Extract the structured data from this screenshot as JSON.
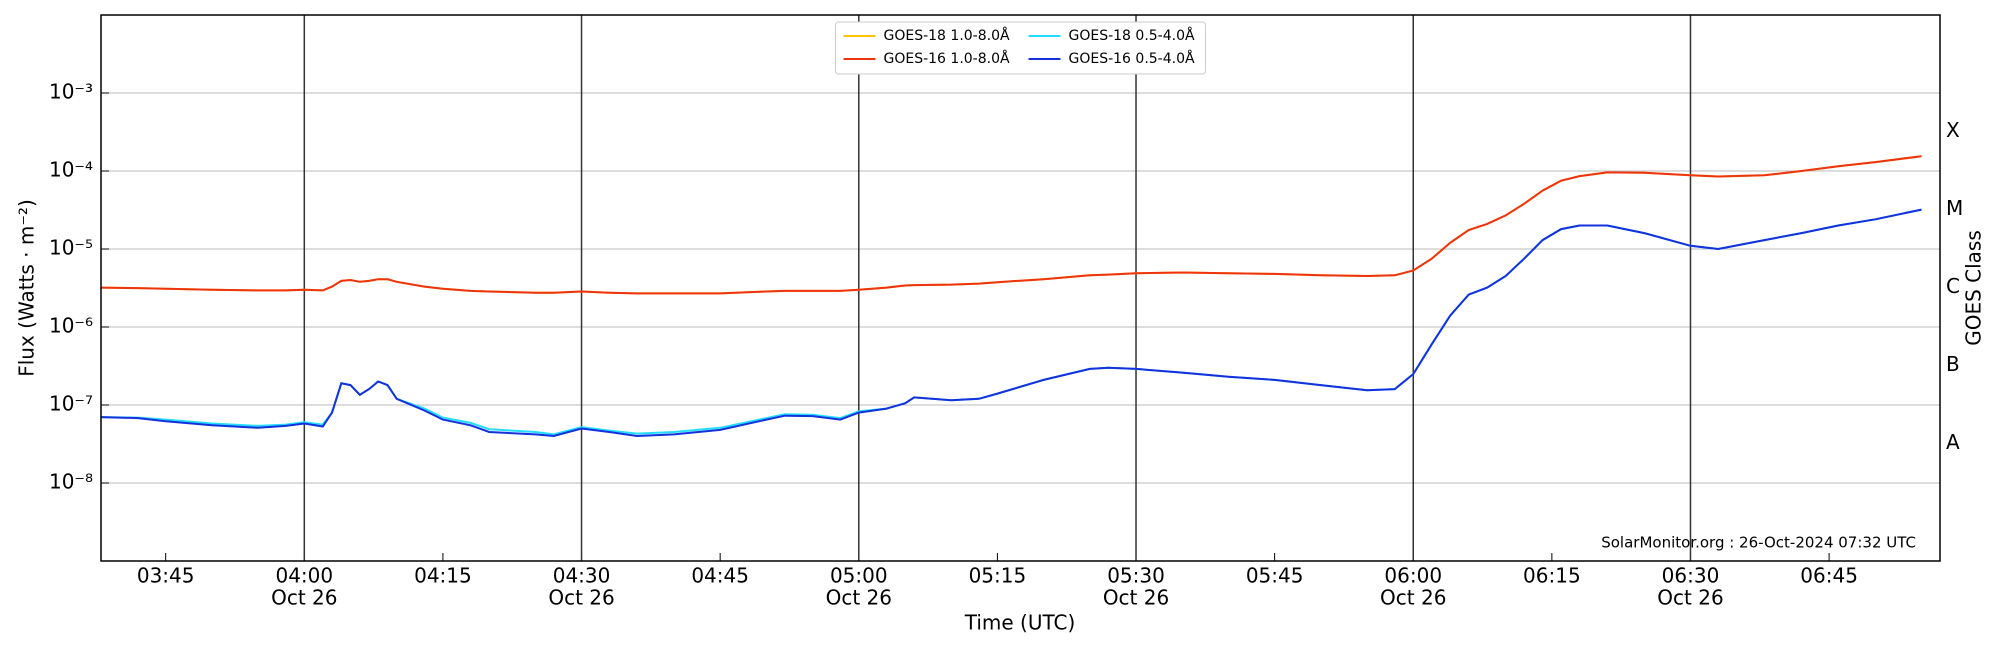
{
  "chart_data": {
    "type": "line",
    "ylabel": "Flux (Watts · m⁻²)",
    "xlabel": "Time (UTC)",
    "y2label": "GOES Class",
    "annotation": "SolarMonitor.org : 26-Oct-2024 07:32 UTC",
    "log_y": true,
    "grid": true,
    "date_lines": true,
    "legend": "upper center",
    "xlim": [
      "03:38",
      "06:57"
    ],
    "xticks": [
      "03:45",
      {
        "value": "04:00",
        "label": "04:00",
        "date": "Oct 26"
      },
      "04:15",
      {
        "value": "04:30",
        "label": "04:30",
        "date": "Oct 26"
      },
      "04:45",
      {
        "value": "05:00",
        "label": "05:00",
        "date": "Oct 26"
      },
      "05:15",
      {
        "value": "05:30",
        "label": "05:30",
        "date": "Oct 26"
      },
      "05:45",
      {
        "value": "06:00",
        "label": "06:00",
        "date": "Oct 26"
      },
      "06:15",
      {
        "value": "06:30",
        "label": "06:30",
        "date": "Oct 26"
      },
      "06:45"
    ],
    "ylim": [
      1e-09,
      0.01
    ],
    "yticks": [
      {
        "value": 1e-08,
        "label": "10⁻⁸"
      },
      {
        "value": 1e-07,
        "label": "10⁻⁷"
      },
      {
        "value": 1e-06,
        "label": "10⁻⁶"
      },
      {
        "value": 1e-05,
        "label": "10⁻⁵"
      },
      {
        "value": 0.0001,
        "label": "10⁻⁴"
      },
      {
        "value": 0.001,
        "label": "10⁻³"
      }
    ],
    "y2lim": [
      1e-09,
      0.01
    ],
    "y2ticks": [
      {
        "value": 3.2e-08,
        "label": "A"
      },
      {
        "value": 3.2e-07,
        "label": "B"
      },
      {
        "value": 3.2e-06,
        "label": "C"
      },
      {
        "value": 3.2e-05,
        "label": "M"
      },
      {
        "value": 0.00032,
        "label": "X"
      }
    ],
    "x": [
      "03:38",
      "03:42",
      "03:45",
      "03:50",
      "03:55",
      "03:58",
      "04:00",
      "04:02",
      "04:03",
      "04:04",
      "04:05",
      "04:06",
      "04:07",
      "04:08",
      "04:09",
      "04:10",
      "04:13",
      "04:15",
      "04:18",
      "04:20",
      "04:25",
      "04:27",
      "04:30",
      "04:33",
      "04:36",
      "04:40",
      "04:45",
      "04:50",
      "04:52",
      "04:55",
      "04:58",
      "05:00",
      "05:03",
      "05:05",
      "05:06",
      "05:10",
      "05:13",
      "05:15",
      "05:20",
      "05:25",
      "05:27",
      "05:30",
      "05:35",
      "05:40",
      "05:45",
      "05:50",
      "05:55",
      "05:58",
      "06:00",
      "06:02",
      "06:04",
      "06:06",
      "06:08",
      "06:10",
      "06:12",
      "06:14",
      "06:16",
      "06:18",
      "06:21",
      "06:25",
      "06:30",
      "06:33",
      "06:38",
      "06:42",
      "06:46",
      "06:50",
      "06:55"
    ],
    "series": [
      {
        "name": "GOES-18 1.0-8.0Å",
        "color": "#ffc400",
        "values": [
          3.2e-06,
          3.15e-06,
          3.1e-06,
          3e-06,
          2.95e-06,
          2.95e-06,
          3e-06,
          2.95e-06,
          3.3e-06,
          3.9e-06,
          4e-06,
          3.8e-06,
          3.9e-06,
          4.1e-06,
          4.1e-06,
          3.8e-06,
          3.3e-06,
          3.1e-06,
          2.9e-06,
          2.85e-06,
          2.75e-06,
          2.75e-06,
          2.85e-06,
          2.75e-06,
          2.7e-06,
          2.7e-06,
          2.7e-06,
          2.85e-06,
          2.9e-06,
          2.9e-06,
          2.9e-06,
          3e-06,
          3.2e-06,
          3.4e-06,
          3.45e-06,
          3.5e-06,
          3.6e-06,
          3.75e-06,
          4.1e-06,
          4.6e-06,
          4.7e-06,
          4.9e-06,
          5e-06,
          4.9e-06,
          4.8e-06,
          4.6e-06,
          4.5e-06,
          4.6e-06,
          5.3e-06,
          7.5e-06,
          1.2e-05,
          1.75e-05,
          2.1e-05,
          2.7e-05,
          3.8e-05,
          5.6e-05,
          7.5e-05,
          8.6e-05,
          9.6e-05,
          9.5e-05,
          8.8e-05,
          8.5e-05,
          8.8e-05,
          0.0001,
          0.000115,
          0.00013,
          0.000155
        ]
      },
      {
        "name": "GOES-16 1.0-8.0Å",
        "color": "#ee3311",
        "values": [
          3.2e-06,
          3.15e-06,
          3.1e-06,
          3e-06,
          2.95e-06,
          2.95e-06,
          3e-06,
          2.95e-06,
          3.3e-06,
          3.9e-06,
          4e-06,
          3.8e-06,
          3.9e-06,
          4.1e-06,
          4.1e-06,
          3.8e-06,
          3.3e-06,
          3.1e-06,
          2.9e-06,
          2.85e-06,
          2.75e-06,
          2.75e-06,
          2.85e-06,
          2.75e-06,
          2.7e-06,
          2.7e-06,
          2.7e-06,
          2.85e-06,
          2.9e-06,
          2.9e-06,
          2.9e-06,
          3e-06,
          3.2e-06,
          3.4e-06,
          3.45e-06,
          3.5e-06,
          3.6e-06,
          3.75e-06,
          4.1e-06,
          4.6e-06,
          4.7e-06,
          4.9e-06,
          5e-06,
          4.9e-06,
          4.8e-06,
          4.6e-06,
          4.5e-06,
          4.6e-06,
          5.3e-06,
          7.5e-06,
          1.2e-05,
          1.75e-05,
          2.1e-05,
          2.7e-05,
          3.8e-05,
          5.6e-05,
          7.5e-05,
          8.6e-05,
          9.6e-05,
          9.5e-05,
          8.8e-05,
          8.5e-05,
          8.8e-05,
          0.0001,
          0.000115,
          0.00013,
          0.000155
        ]
      },
      {
        "name": "GOES-18 0.5-4.0Å",
        "color": "#22ddff",
        "values": [
          7e-08,
          6.9e-08,
          6.5e-08,
          5.8e-08,
          5.4e-08,
          5.6e-08,
          6e-08,
          5.6e-08,
          8e-08,
          1.9e-07,
          1.8e-07,
          1.35e-07,
          1.6e-07,
          2e-07,
          1.8e-07,
          1.2e-07,
          9e-08,
          6.9e-08,
          5.9e-08,
          4.9e-08,
          4.5e-08,
          4.2e-08,
          5.2e-08,
          4.7e-08,
          4.3e-08,
          4.5e-08,
          5.1e-08,
          6.8e-08,
          7.6e-08,
          7.5e-08,
          6.8e-08,
          8.3e-08,
          9e-08,
          1.05e-07,
          1.25e-07,
          1.15e-07,
          1.2e-07,
          1.4e-07,
          2.1e-07,
          2.9e-07,
          3e-07,
          2.9e-07,
          2.6e-07,
          2.3e-07,
          2.1e-07,
          1.8e-07,
          1.55e-07,
          1.6e-07,
          2.5e-07,
          6e-07,
          1.4e-06,
          2.6e-06,
          3.2e-06,
          4.5e-06,
          7.5e-06,
          1.3e-05,
          1.8e-05,
          2e-05,
          2e-05,
          1.6e-05,
          1.1e-05,
          1e-05,
          1.3e-05,
          1.6e-05,
          2e-05,
          2.4e-05,
          3.2e-05
        ]
      },
      {
        "name": "GOES-16 0.5-4.0Å",
        "color": "#1530dd",
        "values": [
          7e-08,
          6.8e-08,
          6.2e-08,
          5.5e-08,
          5.1e-08,
          5.4e-08,
          5.8e-08,
          5.3e-08,
          8e-08,
          1.9e-07,
          1.8e-07,
          1.35e-07,
          1.6e-07,
          2e-07,
          1.8e-07,
          1.2e-07,
          8.5e-08,
          6.5e-08,
          5.5e-08,
          4.5e-08,
          4.2e-08,
          4e-08,
          5e-08,
          4.5e-08,
          4e-08,
          4.2e-08,
          4.8e-08,
          6.5e-08,
          7.3e-08,
          7.2e-08,
          6.5e-08,
          8e-08,
          9e-08,
          1.05e-07,
          1.25e-07,
          1.15e-07,
          1.2e-07,
          1.4e-07,
          2.1e-07,
          2.9e-07,
          3e-07,
          2.9e-07,
          2.6e-07,
          2.3e-07,
          2.1e-07,
          1.8e-07,
          1.55e-07,
          1.6e-07,
          2.5e-07,
          6e-07,
          1.4e-06,
          2.6e-06,
          3.2e-06,
          4.5e-06,
          7.5e-06,
          1.3e-05,
          1.8e-05,
          2e-05,
          2e-05,
          1.6e-05,
          1.1e-05,
          1e-05,
          1.3e-05,
          1.6e-05,
          2e-05,
          2.4e-05,
          3.2e-05
        ]
      }
    ]
  }
}
